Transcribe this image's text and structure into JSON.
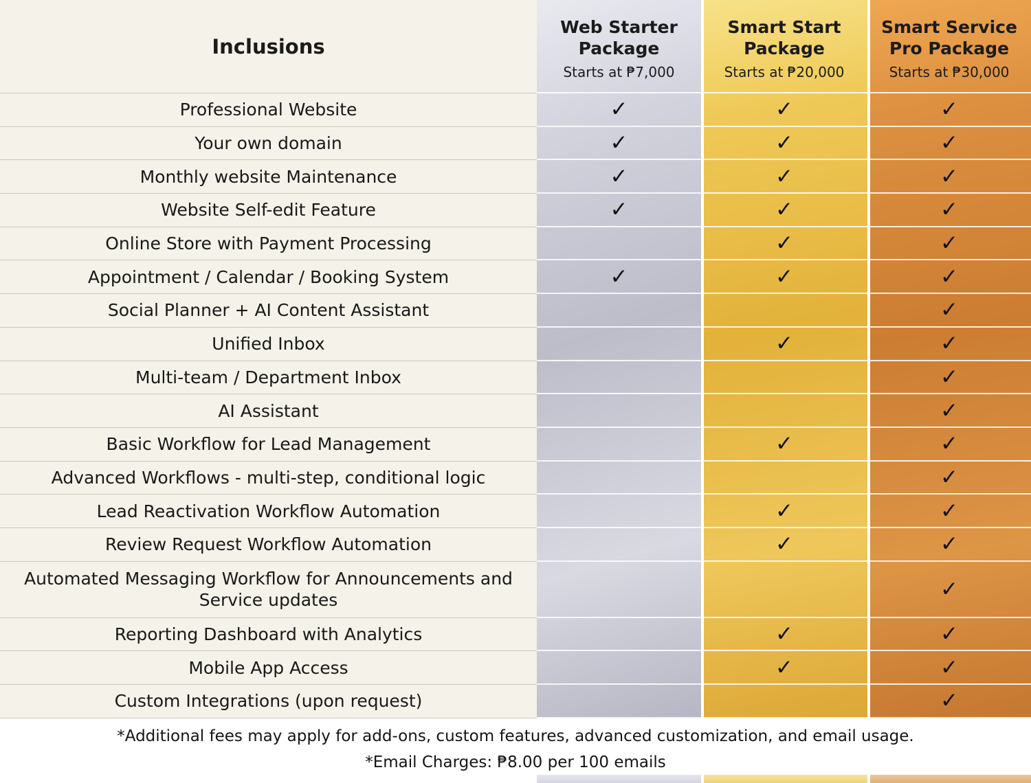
{
  "chart_data": {
    "type": "table",
    "title": "Inclusions",
    "check_symbol": "✓",
    "packages": [
      {
        "name": "Web Starter Package",
        "price": "Starts at ₱7,000"
      },
      {
        "name": "Smart Start Package",
        "price": "Starts at ₱20,000"
      },
      {
        "name": "Smart Service Pro Package",
        "price": "Starts at ₱30,000"
      }
    ],
    "rows": [
      {
        "feature": "Professional Website",
        "cells": [
          "✓",
          "✓",
          "✓"
        ]
      },
      {
        "feature": "Your own domain",
        "cells": [
          "✓",
          "✓",
          "✓"
        ]
      },
      {
        "feature": "Monthly website Maintenance",
        "cells": [
          "✓",
          "✓",
          "✓"
        ]
      },
      {
        "feature": "Website Self-edit Feature",
        "cells": [
          "✓",
          "✓",
          "✓"
        ]
      },
      {
        "feature": "Online Store with Payment Processing",
        "cells": [
          "",
          "✓",
          "✓"
        ]
      },
      {
        "feature": "Appointment / Calendar / Booking System",
        "cells": [
          "✓",
          "✓",
          "✓"
        ]
      },
      {
        "feature": "Social Planner + AI Content Assistant",
        "cells": [
          "",
          "",
          "✓"
        ]
      },
      {
        "feature": "Unified Inbox",
        "cells": [
          "",
          "✓",
          "✓"
        ]
      },
      {
        "feature": "Multi-team / Department Inbox",
        "cells": [
          "",
          "",
          "✓"
        ]
      },
      {
        "feature": "AI Assistant",
        "cells": [
          "",
          "",
          "✓"
        ]
      },
      {
        "feature": "Basic Workflow for Lead Management",
        "cells": [
          "",
          "✓",
          "✓"
        ]
      },
      {
        "feature": "Advanced Workflows - multi-step, conditional logic",
        "cells": [
          "",
          "",
          "✓"
        ]
      },
      {
        "feature": "Lead Reactivation Workflow Automation",
        "cells": [
          "",
          "✓",
          "✓"
        ]
      },
      {
        "feature": "Review Request Workflow Automation",
        "cells": [
          "",
          "✓",
          "✓"
        ]
      },
      {
        "feature": "Automated Messaging Workflow for Announcements and Service updates",
        "cells": [
          "",
          "",
          "✓"
        ]
      },
      {
        "feature": "Reporting Dashboard with Analytics",
        "cells": [
          "",
          "✓",
          "✓"
        ]
      },
      {
        "feature": "Mobile App Access",
        "cells": [
          "",
          "✓",
          "✓"
        ]
      },
      {
        "feature": "Custom Integrations (upon request)",
        "cells": [
          "",
          "",
          "✓"
        ]
      }
    ]
  },
  "footnotes": [
    "*Additional fees may apply for add-ons, custom features, advanced customization, and email usage.",
    "*Email Charges: ₱8.00 per 100 emails"
  ],
  "colors": {
    "silver_column": "#c2c3cf",
    "gold_column": "#e5b743",
    "bronze_column": "#cd8036",
    "feature_column_bg": "#f4f2e9",
    "check_color": "#101010"
  }
}
